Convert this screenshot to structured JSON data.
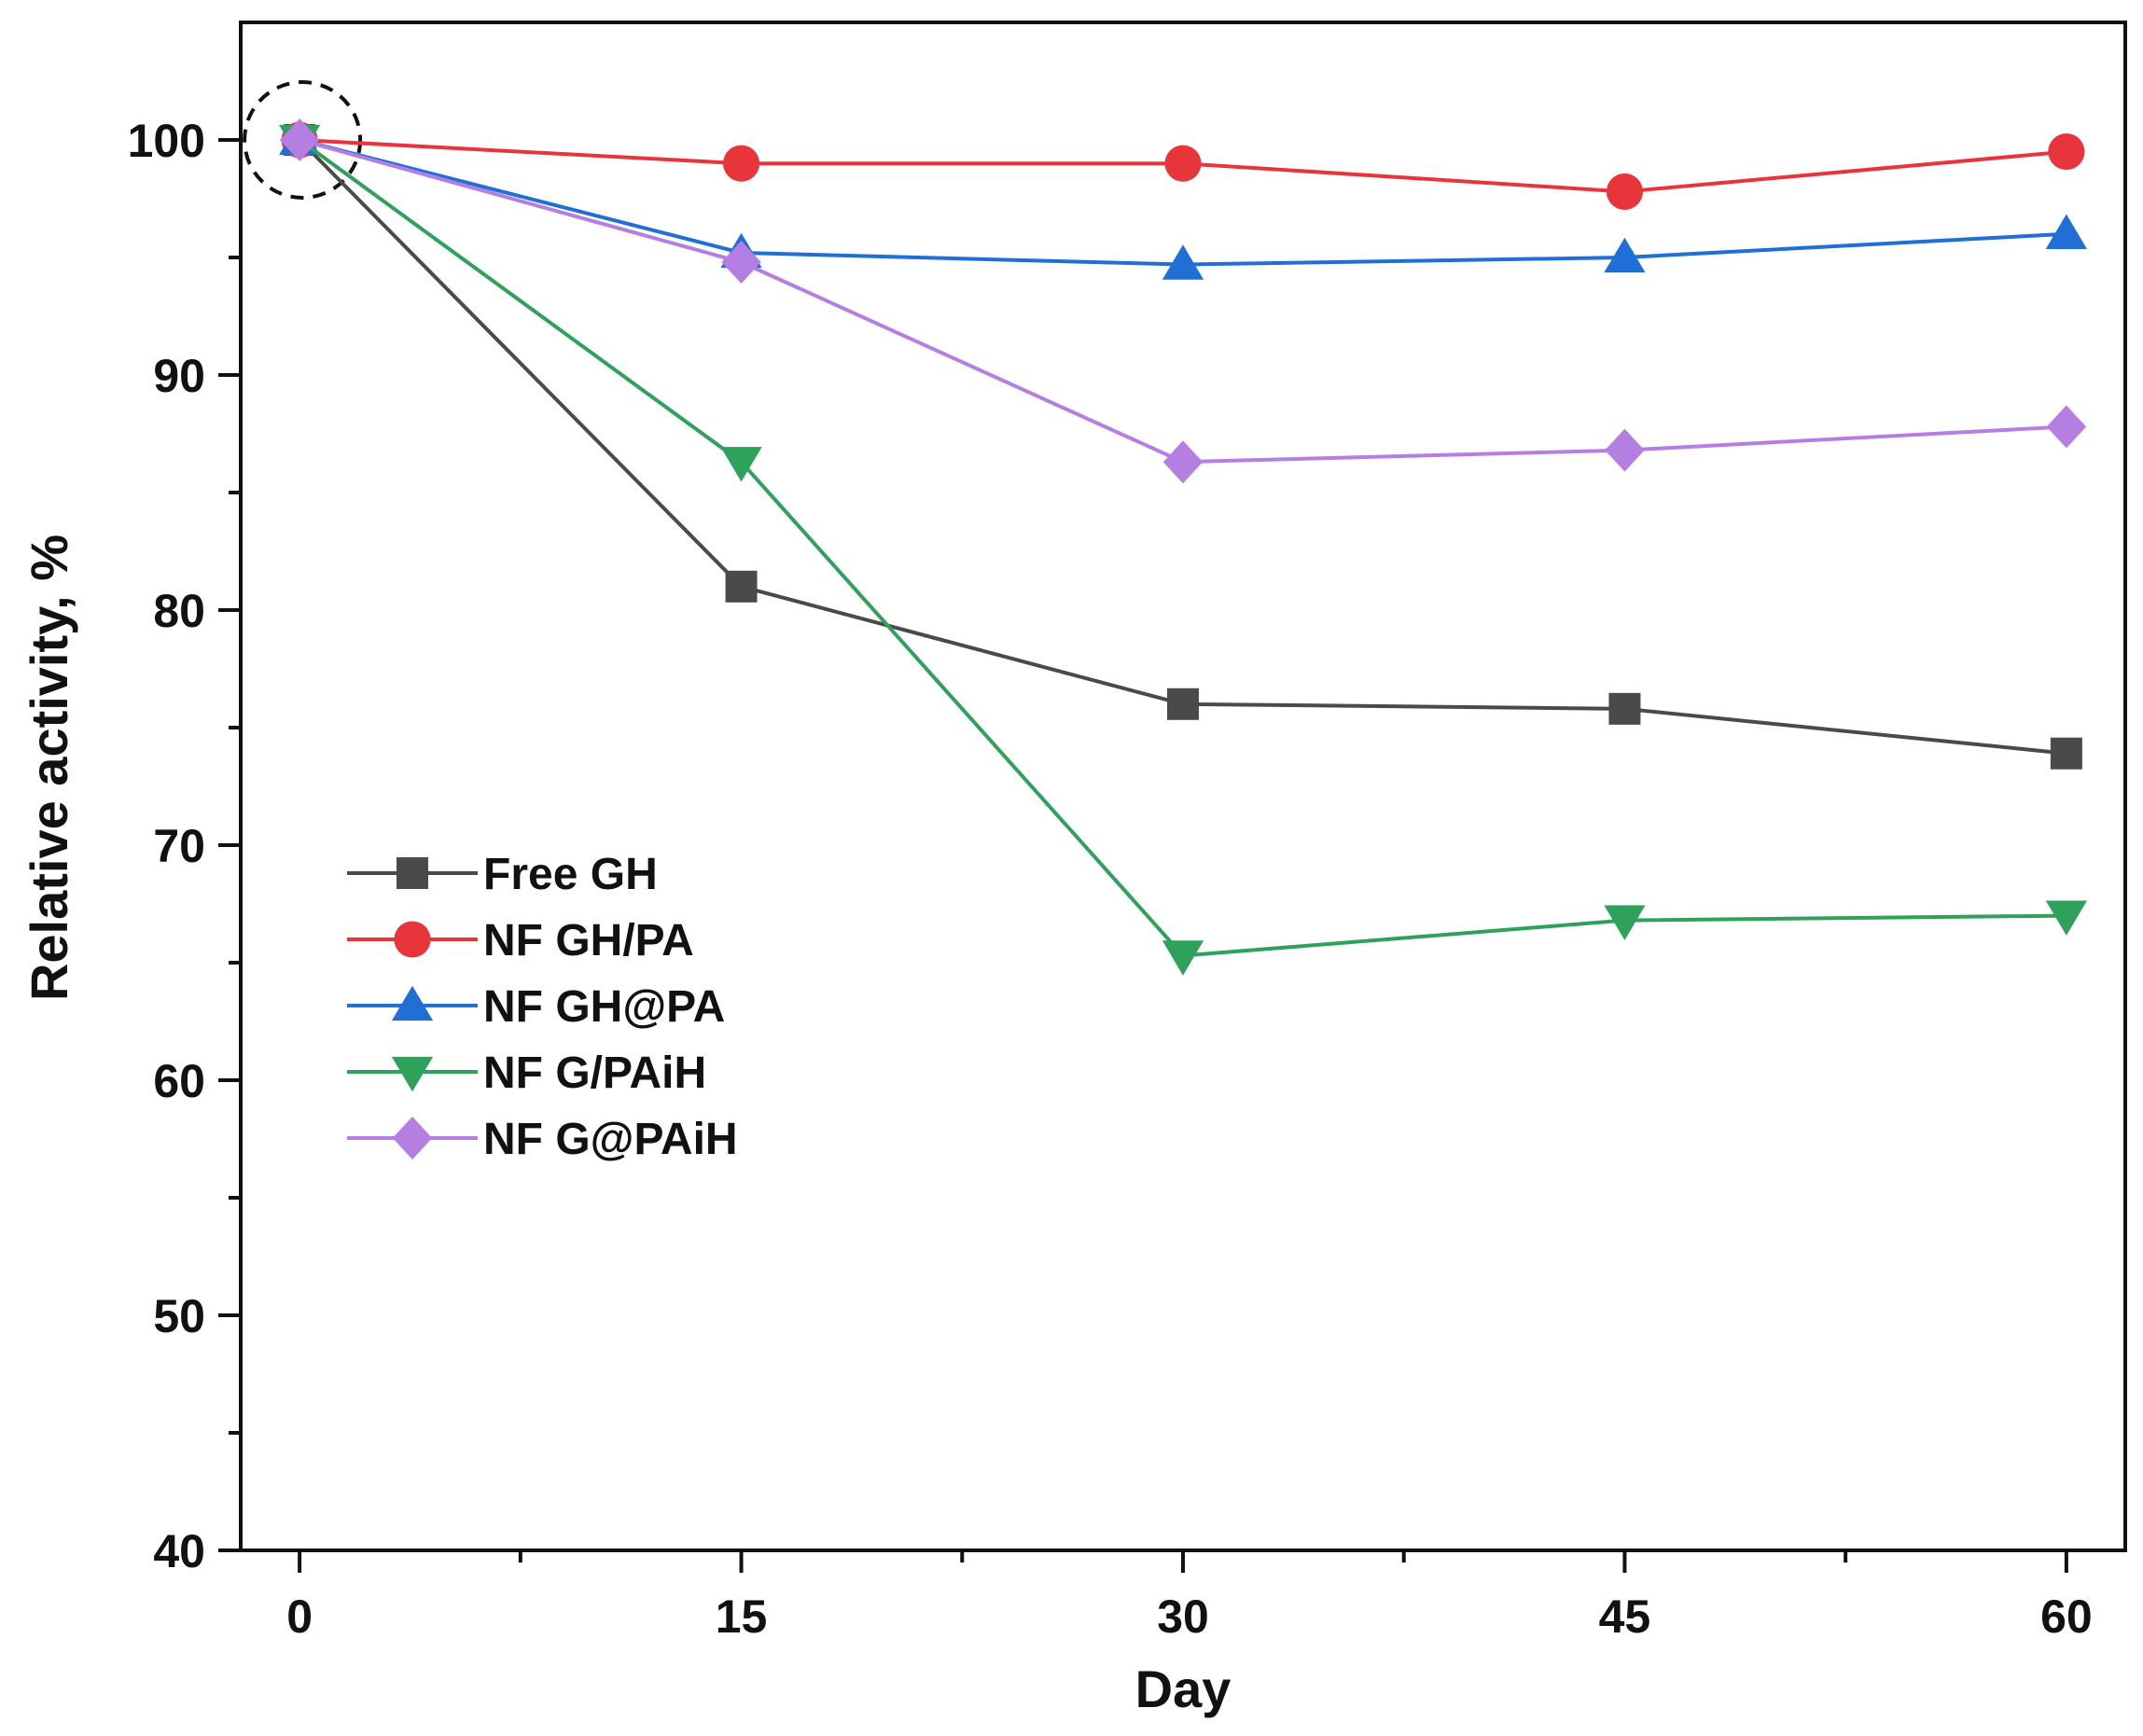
{
  "chart_data": {
    "type": "line",
    "title": "",
    "xlabel": "Day",
    "ylabel": "Relative activity, %",
    "x": [
      0,
      15,
      30,
      45,
      60
    ],
    "xticks": [
      "0",
      "15",
      "30",
      "45",
      "60"
    ],
    "yticks": [
      "40",
      "50",
      "60",
      "70",
      "80",
      "90",
      "100"
    ],
    "xlim": [
      -2,
      62
    ],
    "ylim": [
      40,
      105
    ],
    "grid": false,
    "legend_position": "center-left",
    "annotation": "dashed circle highlighting the day-0 point (100%)",
    "series": [
      {
        "name": "Free GH",
        "marker": "square",
        "color": "#4a4a4a",
        "values": [
          100,
          81.0,
          76.0,
          75.8,
          73.9
        ]
      },
      {
        "name": "NF GH/PA",
        "marker": "circle",
        "color": "#e8353b",
        "values": [
          100,
          99.0,
          99.0,
          97.8,
          99.5
        ]
      },
      {
        "name": "NF GH@PA",
        "marker": "triangle-up",
        "color": "#1f6fd6",
        "values": [
          100,
          95.2,
          94.7,
          95.0,
          96.0
        ]
      },
      {
        "name": "NF G/PAiH",
        "marker": "triangle-down",
        "color": "#2ea15a",
        "values": [
          100,
          86.3,
          65.3,
          66.8,
          67.0
        ]
      },
      {
        "name": "NF G@PAiH",
        "marker": "diamond",
        "color": "#b57ee3",
        "values": [
          100,
          94.8,
          86.3,
          86.8,
          87.8
        ]
      }
    ]
  }
}
